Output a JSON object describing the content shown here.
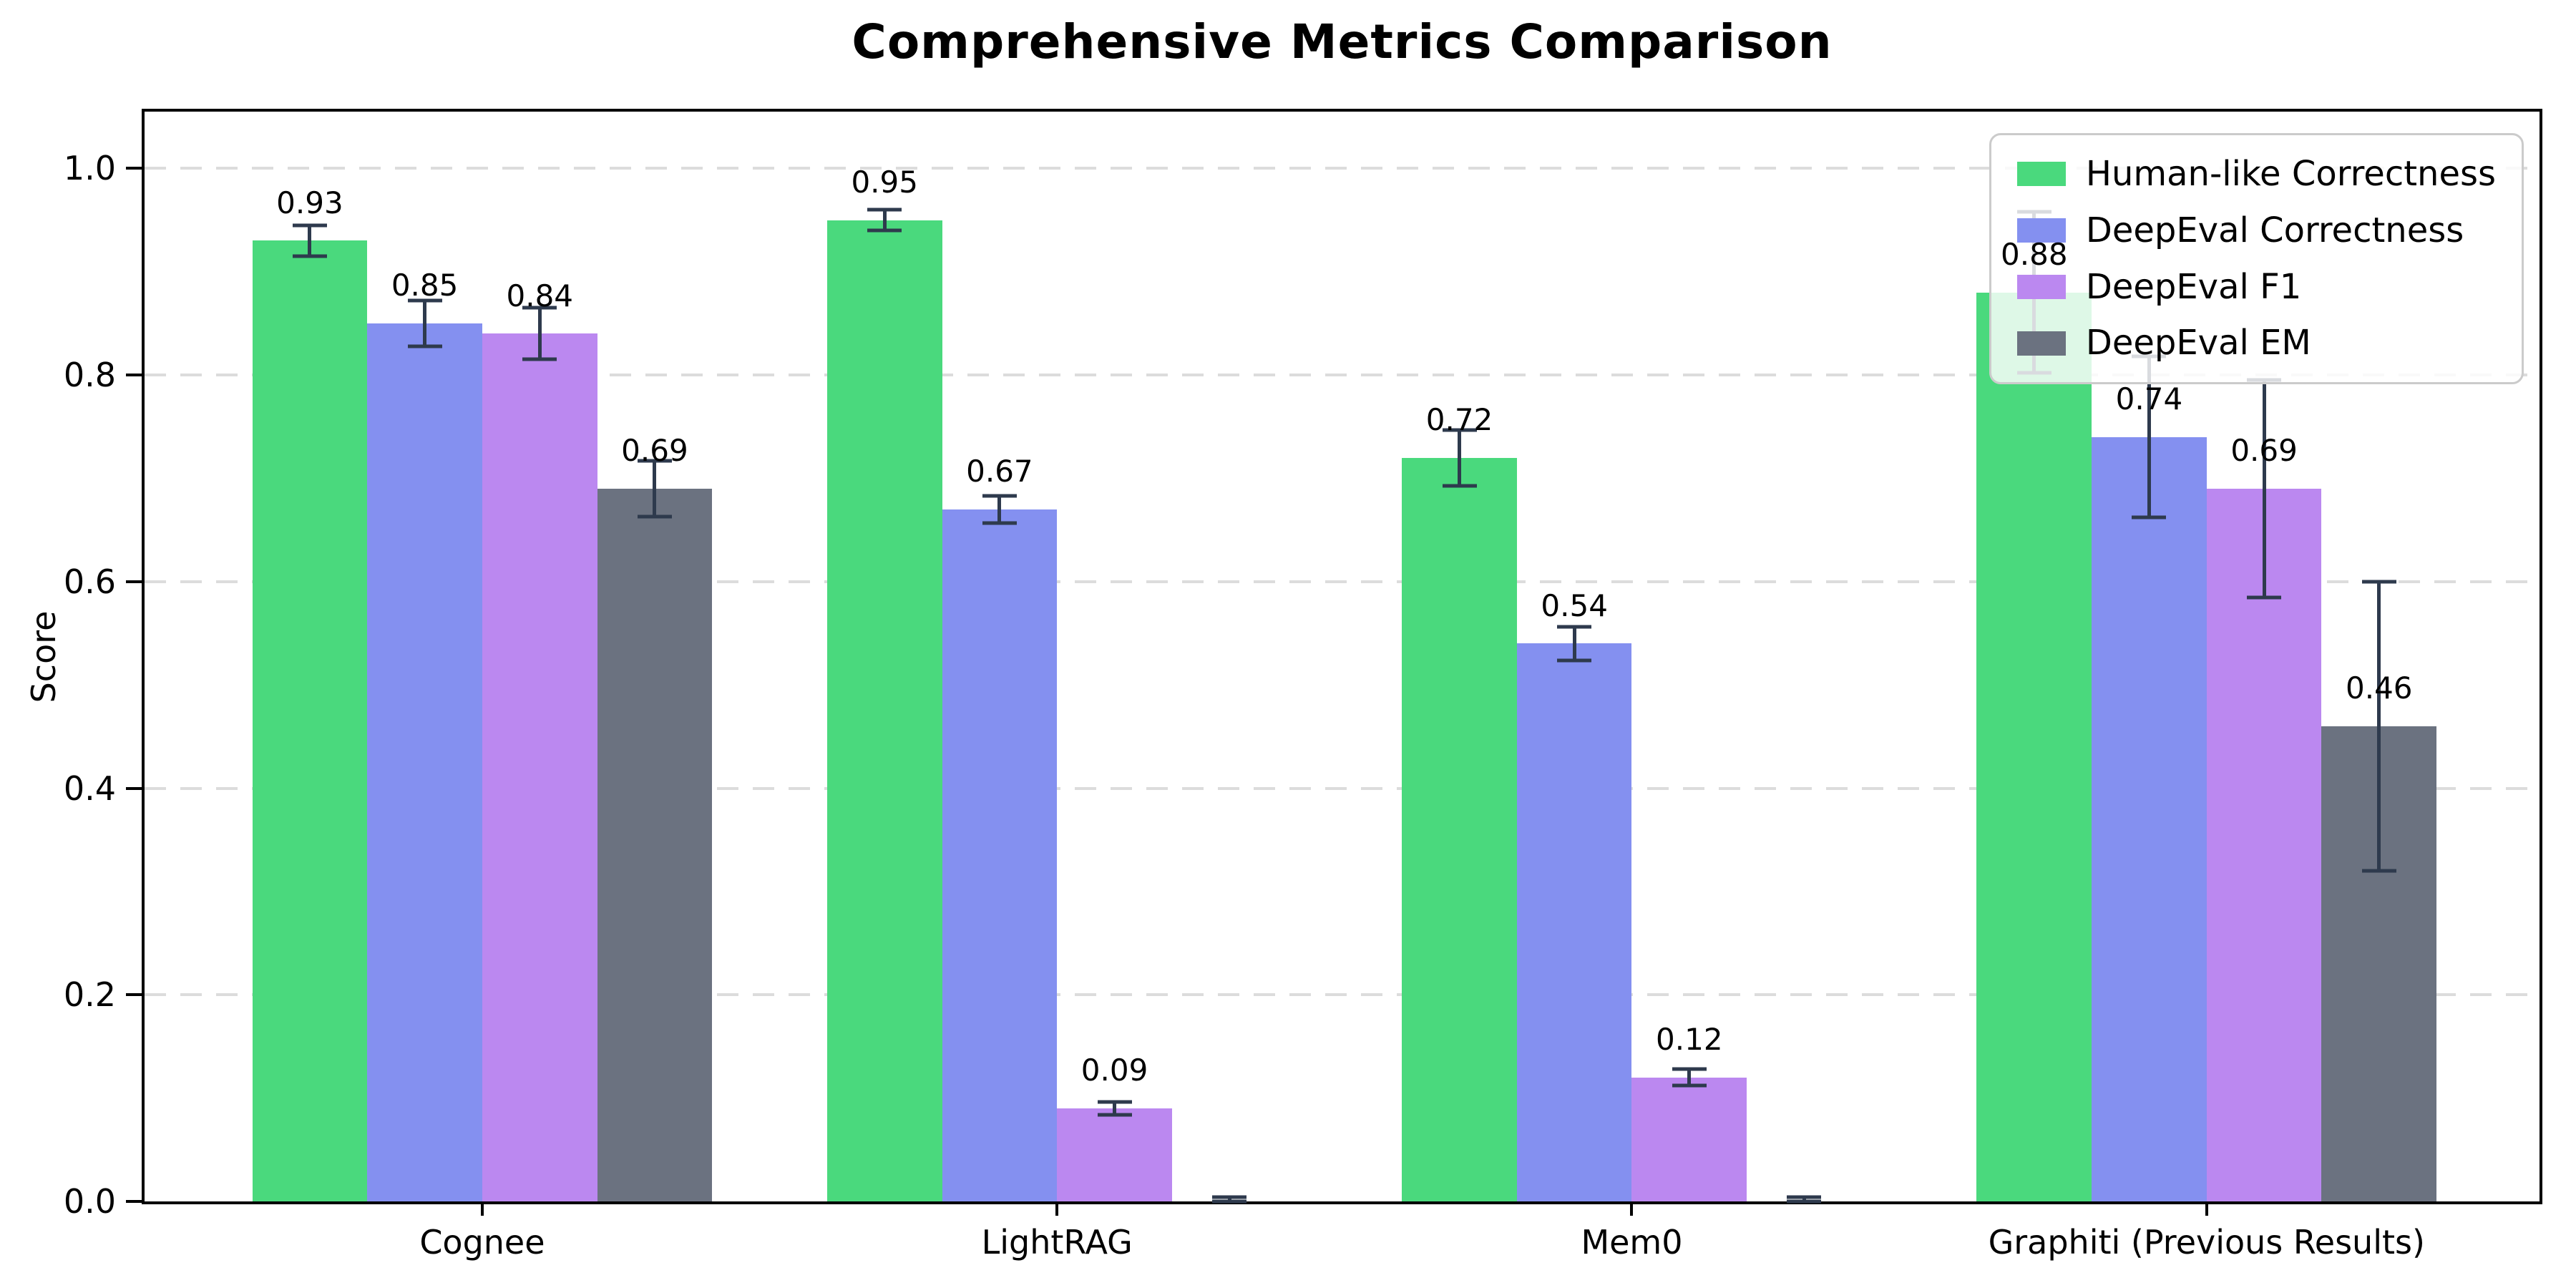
{
  "title": "Comprehensive Metrics Comparison",
  "ylabel": "Score",
  "chart_data": {
    "type": "bar",
    "title": "Comprehensive Metrics Comparison",
    "xlabel": "",
    "ylabel": "Score",
    "categories": [
      "Cognee",
      "LightRAG",
      "Mem0",
      "Graphiti (Previous Results)"
    ],
    "series": [
      {
        "name": "Human-like Correctness",
        "color": "#4ad97d",
        "values": [
          0.93,
          0.95,
          0.72,
          0.88
        ],
        "errors": [
          0.015,
          0.01,
          0.027,
          0.078
        ],
        "labels": [
          "0.93",
          "0.95",
          "0.72",
          "0.88"
        ]
      },
      {
        "name": "DeepEval Correctness",
        "color": "#8490f0",
        "values": [
          0.85,
          0.67,
          0.54,
          0.74
        ],
        "errors": [
          0.022,
          0.013,
          0.016,
          0.078
        ],
        "labels": [
          "0.85",
          "0.67",
          "0.54",
          "0.74"
        ]
      },
      {
        "name": "DeepEval F1",
        "color": "#bb88f0",
        "values": [
          0.84,
          0.09,
          0.12,
          0.69
        ],
        "errors": [
          0.025,
          0.006,
          0.008,
          0.105
        ],
        "labels": [
          "0.84",
          "0.09",
          "0.12",
          "0.69"
        ]
      },
      {
        "name": "DeepEval EM",
        "color": "#6b7280",
        "values": [
          0.69,
          0.0,
          0.0,
          0.46
        ],
        "errors": [
          0.027,
          0.004,
          0.004,
          0.14
        ],
        "labels": [
          "0.69",
          null,
          null,
          "0.46"
        ]
      }
    ],
    "ylim": [
      0.0,
      1.055
    ],
    "yticks": [
      0.0,
      0.2,
      0.4,
      0.6,
      0.8,
      1.0
    ],
    "ytick_labels": [
      "0.0",
      "0.2",
      "0.4",
      "0.6",
      "0.8",
      "1.0"
    ],
    "grid": {
      "axis": "y",
      "style": "dashed",
      "color": "#dcdcdc"
    },
    "legend_position": "upper right",
    "error_bars": true,
    "error_bar_color": "#2e3a4d",
    "value_labels_shown": true
  }
}
